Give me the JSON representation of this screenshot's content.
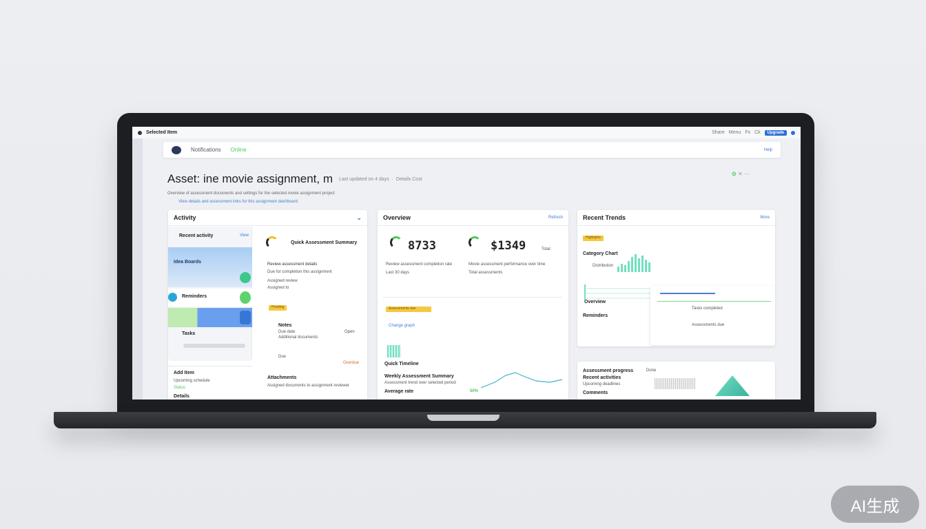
{
  "browser": {
    "title": "Selected Item",
    "right_items": [
      "Share",
      "Menu",
      "Fx",
      "Ck"
    ],
    "badge": "Upgrade"
  },
  "nav": {
    "brand": "Notifications",
    "status": "Online",
    "right": "Help"
  },
  "header": {
    "title": "Asset: ine movie assignment, m",
    "meta": "Last updated on 4 days",
    "meta2": "Details Cost",
    "subtitle": "Overview of assessment documents and settings for the selected movie assignment project",
    "link": "View details and assessment links for this assignment dashboard"
  },
  "activity": {
    "title": "Activity",
    "items": [
      {
        "label": "Recent activity",
        "link": "View"
      },
      {
        "label": "Idea Boards"
      },
      {
        "label": "Reminders"
      },
      {
        "label": "Tasks"
      }
    ],
    "footer": {
      "title": "Add Item",
      "line": "Upcoming schedule",
      "meta": "Status",
      "link": "Details"
    },
    "detail": {
      "heading": "Quick Assessment Summary",
      "lines": [
        "Review assessment details",
        "Due for completion this assignment",
        "Assigned review",
        "Assigned to"
      ],
      "tag": "Pending",
      "note_title": "Notes",
      "note_lines": [
        "Due date",
        "Additional documents"
      ],
      "meta": [
        "Open",
        "Due",
        "Overdue"
      ],
      "foot_title": "Attachments",
      "foot_line": "Assigned documents to assignment reviewer"
    }
  },
  "overview": {
    "title": "Overview",
    "action": "Refresh",
    "stat1": "8733",
    "stat2": "$1349",
    "stat2_unit": "Total",
    "desc1": "Review assessment completion rate",
    "desc1b": "Last 30 days",
    "desc2": "Movie assessment performance over time",
    "desc2b": "Total assessments",
    "tag": "Assessments due",
    "link": "Change graph",
    "chart_title": "Quick Timeline",
    "chart_sub": "Weekly Assessment Summary",
    "chart_line": "Assessment trend over selected period",
    "chart_foot": "Average rate",
    "chart_value": "50%"
  },
  "trends": {
    "title": "Recent Trends",
    "action": "More",
    "tag": "Highlights",
    "label": "Category Chart",
    "sub": "Distribution",
    "rows": [
      "Overview",
      "Reminders",
      "Tasks completed",
      "Assessments due"
    ],
    "lower_title": "Assessment progress",
    "lower_lines": [
      "Recent activities",
      "Upcoming deadlines",
      "Comments"
    ],
    "lower_meta": "Done"
  },
  "watermark": "AI生成",
  "colors": {
    "accent": "#3b7be0",
    "green": "#4ec85a",
    "yellow": "#f5c842",
    "teal": "#6fe0c0"
  }
}
